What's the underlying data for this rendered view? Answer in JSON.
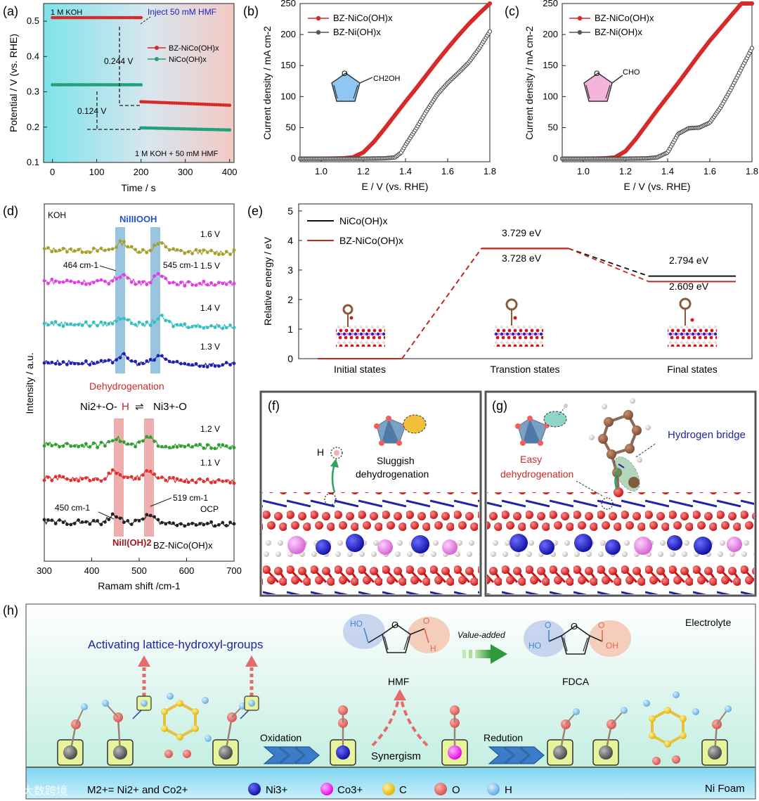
{
  "chart_data": [
    {
      "panel": "(a)",
      "type": "line",
      "xlabel": "Time / s",
      "ylabel": "Potential / V (vs. RHE)",
      "xlim": [
        -20,
        410
      ],
      "ylim": [
        0.1,
        0.55
      ],
      "xticks": [
        0,
        100,
        200,
        300,
        400
      ],
      "yticks": [
        0.1,
        0.2,
        0.3,
        0.4,
        0.5
      ],
      "annotations": {
        "top_left": "1 M KOH",
        "inject": "Inject 50 mM HMF",
        "bottom_right": "1 M KOH + 50 mM HMF",
        "gap1": "0.244 V",
        "gap2": "0.124 V"
      },
      "series": [
        {
          "name": "BZ-NiCo(OH)x",
          "color": "#d72a2a",
          "segments": [
            {
              "x": [
                0,
                200
              ],
              "y": [
                0.51,
                0.51
              ]
            },
            {
              "x": [
                200,
                400
              ],
              "y": [
                0.272,
                0.262
              ]
            }
          ]
        },
        {
          "name": "NiCo(OH)x",
          "color": "#22a07a",
          "segments": [
            {
              "x": [
                0,
                200
              ],
              "y": [
                0.32,
                0.32
              ]
            },
            {
              "x": [
                200,
                400
              ],
              "y": [
                0.198,
                0.192
              ]
            }
          ]
        }
      ],
      "legend": [
        "BZ-NiCo(OH)x",
        "NiCo(OH)x"
      ]
    },
    {
      "panel": "(b)",
      "type": "line",
      "xlabel": "E / V (vs. RHE)",
      "ylabel": "Current density / mA cm-2",
      "xlim": [
        0.9,
        1.8
      ],
      "ylim": [
        -5,
        250
      ],
      "xticks": [
        1.0,
        1.2,
        1.4,
        1.6,
        1.8
      ],
      "yticks": [
        0,
        50,
        100,
        150,
        200,
        250
      ],
      "molecule_label": "CH2OH",
      "series": [
        {
          "name": "BZ-NiCo(OH)x",
          "color": "#d72a2a",
          "x": [
            0.9,
            1.0,
            1.1,
            1.15,
            1.2,
            1.25,
            1.3,
            1.35,
            1.4,
            1.45,
            1.5,
            1.55,
            1.6,
            1.65,
            1.7,
            1.75,
            1.8
          ],
          "y": [
            0,
            0,
            0.5,
            2,
            10,
            27,
            48,
            70,
            92,
            113,
            135,
            157,
            178,
            198,
            217,
            234,
            250
          ]
        },
        {
          "name": "BZ-Ni(OH)x",
          "color": "#444444",
          "x": [
            0.9,
            1.0,
            1.2,
            1.3,
            1.35,
            1.38,
            1.4,
            1.45,
            1.5,
            1.55,
            1.6,
            1.65,
            1.7,
            1.75,
            1.8
          ],
          "y": [
            0,
            0,
            0,
            0.5,
            2,
            10,
            22,
            48,
            77,
            103,
            122,
            138,
            155,
            178,
            205
          ]
        }
      ],
      "legend": [
        "BZ-NiCo(OH)x",
        "BZ-Ni(OH)x"
      ]
    },
    {
      "panel": "(c)",
      "type": "line",
      "xlabel": "E / V (vs. RHE)",
      "ylabel": "Current density / mA cm-2",
      "xlim": [
        0.9,
        1.8
      ],
      "ylim": [
        -5,
        250
      ],
      "xticks": [
        1.0,
        1.2,
        1.4,
        1.6,
        1.8
      ],
      "yticks": [
        0,
        50,
        100,
        150,
        200,
        250
      ],
      "molecule_label": "CHO",
      "series": [
        {
          "name": "BZ-NiCo(OH)x",
          "color": "#d72a2a",
          "x": [
            0.9,
            1.0,
            1.1,
            1.15,
            1.2,
            1.25,
            1.3,
            1.35,
            1.4,
            1.45,
            1.5,
            1.55,
            1.6,
            1.65,
            1.7,
            1.75
          ],
          "y": [
            0,
            0,
            0.5,
            2,
            12,
            32,
            55,
            78,
            100,
            122,
            145,
            168,
            190,
            210,
            230,
            250
          ]
        },
        {
          "name": "BZ-Ni(OH)x",
          "color": "#444444",
          "x": [
            0.9,
            1.0,
            1.2,
            1.3,
            1.35,
            1.4,
            1.42,
            1.45,
            1.5,
            1.55,
            1.6,
            1.65,
            1.7,
            1.75,
            1.8
          ],
          "y": [
            0,
            0,
            0,
            0.5,
            2,
            10,
            22,
            40,
            49,
            50,
            58,
            82,
            112,
            145,
            178
          ]
        }
      ],
      "legend": [
        "BZ-NiCo(OH)x",
        "BZ-Ni(OH)x"
      ]
    },
    {
      "panel": "(d)",
      "type": "line",
      "xlabel": "Ramam shift /cm-1",
      "ylabel": "Intensity / a.u.",
      "xlim": [
        300,
        700
      ],
      "xticks": [
        300,
        400,
        500,
        600,
        700
      ],
      "labels": {
        "koh": "KOH",
        "top_band": "NiIIIOOH",
        "bottom_band": "NiII(OH)2",
        "dehydro": "Dehydrogenation",
        "eq_left": "Ni2+-O-",
        "eq_h": "H",
        "eq_right": "Ni3+-O",
        "p464": "464 cm-1",
        "p545": "545 cm-1",
        "p450": "450 cm-1",
        "p519": "519 cm-1",
        "sample": "BZ-NiCo(OH)x"
      },
      "highlight_bands_cm-1": [
        464,
        545,
        450,
        519
      ],
      "series": [
        {
          "name": "1.6 V",
          "color": "#a5a02a",
          "peaks": [
            464,
            545
          ]
        },
        {
          "name": "1.5 V",
          "color": "#e040e0",
          "peaks": [
            464,
            545
          ]
        },
        {
          "name": "1.4 V",
          "color": "#35c0c0",
          "peaks": [
            464,
            545
          ]
        },
        {
          "name": "1.3 V",
          "color": "#2020b0",
          "peaks": [
            464,
            545
          ]
        },
        {
          "name": "1.2 V",
          "color": "#30a030",
          "peaks": [
            450,
            519
          ]
        },
        {
          "name": "1.1 V",
          "color": "#e03030",
          "peaks": [
            450,
            519
          ]
        },
        {
          "name": "OCP",
          "color": "#222222",
          "peaks": [
            450,
            519
          ]
        }
      ]
    },
    {
      "panel": "(e)",
      "type": "line",
      "ylabel": "Relative energy / eV",
      "ylim": [
        0,
        5
      ],
      "yticks": [
        0,
        1,
        2,
        3,
        4,
        5
      ],
      "categories": [
        "Initial states",
        "Transtion states",
        "Final states"
      ],
      "series": [
        {
          "name": "NiCo(OH)x",
          "color": "#111111",
          "values": [
            0,
            3.728,
            2.794
          ]
        },
        {
          "name": "BZ-NiCo(OH)x",
          "color": "#c8281e",
          "values": [
            0,
            3.729,
            2.609
          ]
        }
      ],
      "value_labels": [
        "3.729 eV",
        "3.728 eV",
        "2.794 eV",
        "2.609 eV"
      ]
    }
  ],
  "panel_f": {
    "label": "(f)",
    "atom": "H",
    "text1": "Sluggish",
    "text2": "dehydrogenation"
  },
  "panel_g": {
    "label": "(g)",
    "text1": "Easy",
    "text2": "dehydrogenation",
    "bridge": "Hydrogen bridge"
  },
  "panel_h": {
    "label": "(h)",
    "electrolyte": "Electrolyte",
    "activating": "Activating lattice-hydroxyl-groups",
    "value_added": "Value-added",
    "hmf": "HMF",
    "fdca": "FDCA",
    "oxidation": "Oxidation",
    "synergism": "Synergism",
    "redution": "Redution",
    "ni_foam": "Ni Foam",
    "legend_m": "M2+= Ni2+ and Co2+",
    "legend_ni": "Ni3+",
    "legend_co": "Co3+",
    "legend_c": "C",
    "legend_o": "O",
    "legend_h": "H",
    "ho": "HO",
    "oh": "OH",
    "h": "H",
    "o": "O"
  },
  "watermark": "大数跨境"
}
